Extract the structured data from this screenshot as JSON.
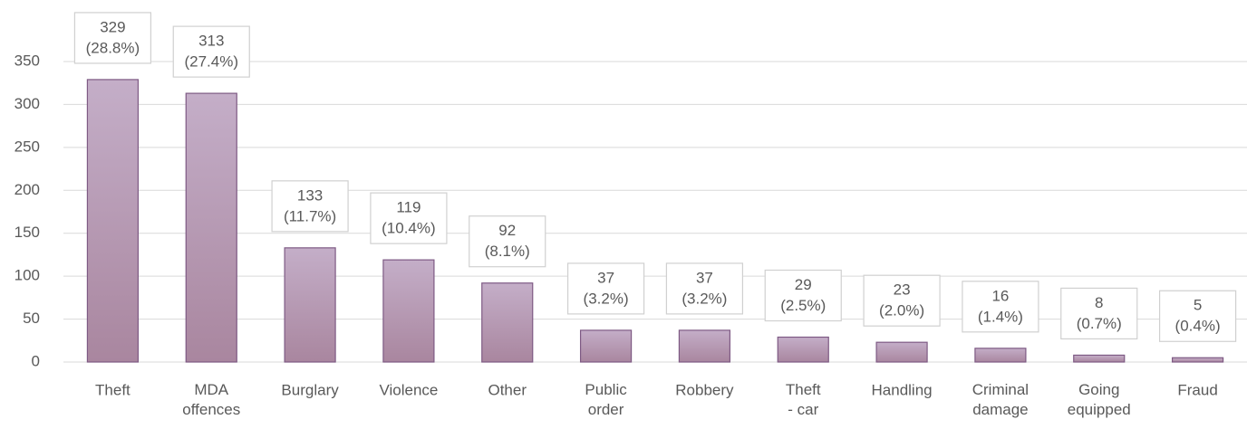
{
  "chart_data": {
    "type": "bar",
    "categories": [
      "Theft",
      "MDA offences",
      "Burglary",
      "Violence",
      "Other",
      "Public order",
      "Robbery",
      "Theft - car",
      "Handling",
      "Criminal damage",
      "Going equipped",
      "Fraud"
    ],
    "values": [
      329,
      313,
      133,
      119,
      92,
      37,
      37,
      29,
      23,
      16,
      8,
      5
    ],
    "value_labels": [
      [
        "329",
        "(28.8%)"
      ],
      [
        "313",
        "(27.4%)"
      ],
      [
        "133",
        "(11.7%)"
      ],
      [
        "119",
        "(10.4%)"
      ],
      [
        "92",
        "(8.1%)"
      ],
      [
        "37",
        "(3.2%)"
      ],
      [
        "37",
        "(3.2%)"
      ],
      [
        "29",
        "(2.5%)"
      ],
      [
        "23",
        "(2.0%)"
      ],
      [
        "16",
        "(1.4%)"
      ],
      [
        "8",
        "(0.7%)"
      ],
      [
        "5",
        "(0.4%)"
      ]
    ],
    "color": "#b59cba",
    "ylim": [
      0,
      350
    ],
    "yticks": [
      0,
      50,
      100,
      150,
      200,
      250,
      300,
      350
    ],
    "grid": true
  }
}
